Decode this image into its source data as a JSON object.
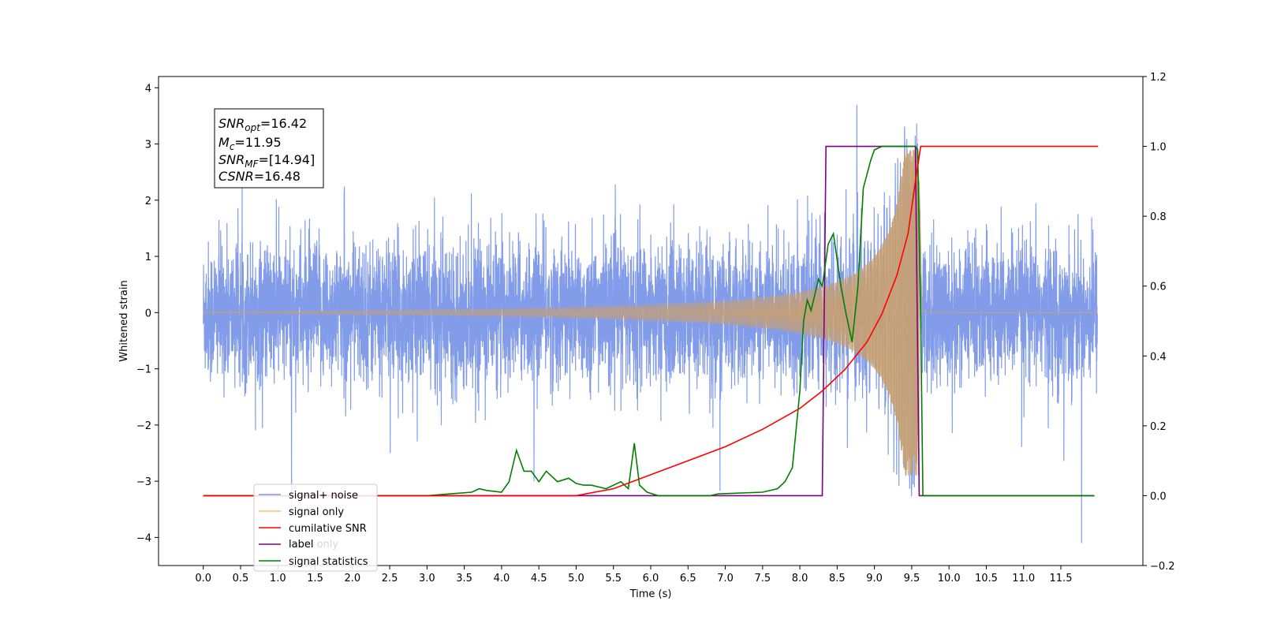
{
  "chart_data": {
    "type": "line",
    "xlabel": "Time (s)",
    "ylabel": "Whitened strain",
    "xlim": [
      -0.6,
      12.6
    ],
    "ylim": [
      -4.5,
      4.2
    ],
    "y2lim": [
      -0.2,
      1.2
    ],
    "x_ticks": [
      "0.0",
      "0.5",
      "1.0",
      "1.5",
      "2.0",
      "2.5",
      "3.0",
      "3.5",
      "4.0",
      "4.5",
      "5.0",
      "5.5",
      "6.0",
      "6.5",
      "7.0",
      "7.5",
      "8.0",
      "8.5",
      "9.0",
      "9.5",
      "10.0",
      "10.5",
      "11.0",
      "11.5"
    ],
    "y_ticks": [
      "4",
      "3",
      "2",
      "1",
      "0",
      "−1",
      "−2",
      "−3",
      "−4"
    ],
    "y2_ticks": [
      "1.2",
      "1.0",
      "0.8",
      "0.6",
      "0.4",
      "0.2",
      "0.0",
      "−0.2"
    ],
    "legend_position": "lower-left",
    "annotation": {
      "snr_opt": {
        "base": "SNR",
        "sub": "opt",
        "value": "=16.42"
      },
      "mc": {
        "base": "M",
        "sub": "c",
        "value": "=11.95"
      },
      "snr_mf": {
        "base": "SNR",
        "sub": "MF",
        "value": "=[14.94]"
      },
      "csnr": {
        "base": "CSNR",
        "value": "=16.48"
      }
    },
    "series": [
      {
        "name": "signal+ noise",
        "color": "#7b97e8",
        "axis": "left",
        "description_range": "x 0.0–11.99, noise band roughly ±2 with spikes up to 3.8 / down to -4.1"
      },
      {
        "name": "signal only",
        "color": "#f5c26b",
        "axis": "left",
        "chirp": {
          "t_start": 0.0,
          "t_merge": 9.6,
          "t_end": 11.99,
          "peak_amplitude": 2.9
        }
      },
      {
        "name": "cumilative SNR",
        "color": "#ff0000",
        "axis": "right",
        "x": [
          0.0,
          5.0,
          5.5,
          6.0,
          6.5,
          7.0,
          7.5,
          8.0,
          8.3,
          8.6,
          8.9,
          9.1,
          9.3,
          9.45,
          9.55,
          9.62,
          12.0
        ],
        "y": [
          0.0,
          0.0,
          0.02,
          0.06,
          0.1,
          0.14,
          0.19,
          0.25,
          0.3,
          0.36,
          0.44,
          0.52,
          0.63,
          0.75,
          0.9,
          1.0,
          1.0
        ]
      },
      {
        "name": "label",
        "color": "#800080",
        "axis": "right",
        "x": [
          0.0,
          8.3,
          8.35,
          9.55,
          9.6,
          11.95
        ],
        "y": [
          0.0,
          0.0,
          1.0,
          1.0,
          0.0,
          0.0
        ]
      },
      {
        "name": "signal statistics",
        "color": "#008000",
        "axis": "right",
        "x": [
          0.0,
          3.0,
          3.3,
          3.6,
          3.7,
          3.8,
          4.0,
          4.1,
          4.2,
          4.3,
          4.4,
          4.5,
          4.6,
          4.65,
          4.75,
          4.9,
          5.0,
          5.1,
          5.2,
          5.4,
          5.6,
          5.7,
          5.78,
          5.85,
          5.95,
          6.1,
          6.5,
          6.8,
          6.9,
          7.5,
          7.7,
          7.8,
          7.9,
          8.0,
          8.05,
          8.1,
          8.15,
          8.25,
          8.3,
          8.38,
          8.45,
          8.55,
          8.62,
          8.7,
          8.78,
          8.85,
          8.95,
          9.0,
          9.1,
          9.55,
          9.58,
          9.62,
          9.65,
          11.95
        ],
        "y": [
          0.0,
          0.0,
          0.005,
          0.01,
          0.02,
          0.015,
          0.01,
          0.04,
          0.13,
          0.07,
          0.07,
          0.04,
          0.07,
          0.06,
          0.04,
          0.05,
          0.035,
          0.03,
          0.03,
          0.02,
          0.04,
          0.02,
          0.15,
          0.03,
          0.01,
          0.0,
          0.0,
          0.0,
          0.005,
          0.01,
          0.02,
          0.04,
          0.08,
          0.3,
          0.5,
          0.56,
          0.53,
          0.62,
          0.6,
          0.72,
          0.75,
          0.6,
          0.52,
          0.44,
          0.6,
          0.88,
          0.96,
          0.99,
          1.0,
          1.0,
          0.99,
          0.5,
          0.0,
          0.0
        ]
      }
    ],
    "legend_entries": [
      "signal+ noise",
      "signal only",
      "cumilative SNR",
      "label",
      "signal statistics"
    ],
    "legend_ghost_text": "label only"
  }
}
